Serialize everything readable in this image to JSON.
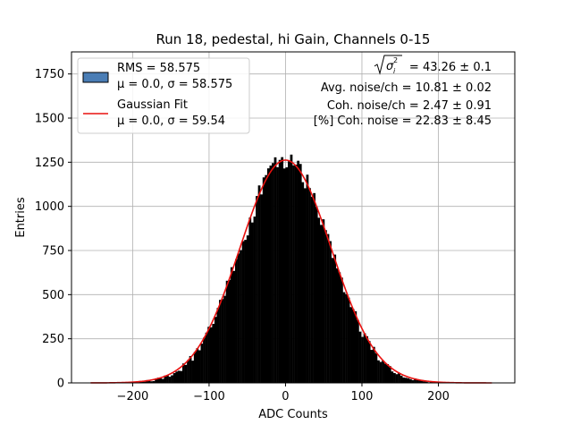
{
  "chart_data": {
    "type": "bar",
    "subtype": "histogram",
    "title": "Run 18, pedestal, hi Gain, Channels 0-15",
    "xlabel": "ADC Counts",
    "ylabel": "Entries",
    "xlim": [
      -280,
      300
    ],
    "ylim": [
      0,
      1875
    ],
    "xticks": [
      -200,
      -100,
      0,
      100,
      200
    ],
    "xtick_labels": [
      "−200",
      "−100",
      "0",
      "100",
      "200"
    ],
    "yticks": [
      0,
      250,
      500,
      750,
      1000,
      1250,
      1500,
      1750
    ],
    "ytick_labels": [
      "0",
      "250",
      "500",
      "750",
      "1000",
      "1250",
      "1500",
      "1750"
    ],
    "grid": true,
    "histogram": {
      "mean": 0.0,
      "rms": 58.575,
      "peak": 1262,
      "x_range": [
        -255,
        270
      ],
      "bin_width": 3
    },
    "fit": {
      "mu": 0.0,
      "sigma": 59.54,
      "amplitude": 1262,
      "x_range": [
        -255,
        270
      ]
    },
    "series": [
      {
        "name": "RMS = 58.575",
        "subtitle": "μ = 0.0, σ = 58.575",
        "color": "#4a7db5",
        "kind": "histogram"
      },
      {
        "name": "Gaussian Fit",
        "subtitle": "μ = 0.0, σ = 59.54",
        "color": "#e8110f",
        "kind": "line"
      }
    ],
    "legend_position": "upper-left",
    "annotations": {
      "sigma_value": "= 43.26 ± 0.1",
      "avg_noise": "Avg. noise/ch = 10.81 ± 0.02",
      "coh_noise": "Coh. noise/ch = 2.47 ± 0.91",
      "coh_noise_pct": "[%] Coh. noise = 22.83 ± 8.45"
    }
  },
  "colors": {
    "histogram_fill": "#000000",
    "legend_patch": "#4a7db5",
    "fit_line": "#e8110f",
    "grid": "#b0b0b0"
  }
}
